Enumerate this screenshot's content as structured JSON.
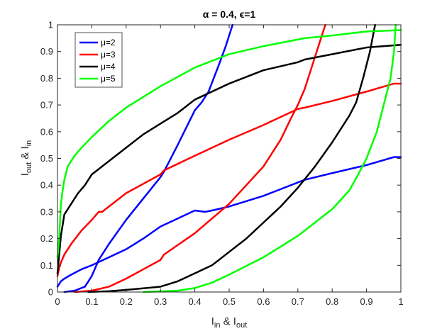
{
  "chart_data": {
    "type": "line",
    "title": "α = 0.4, ϵ=1",
    "xlabel": {
      "main1": "I",
      "sub1": "in",
      "mid": " & I",
      "sub2": "out"
    },
    "ylabel": {
      "main1": "I",
      "sub1": "out",
      "mid": " & I",
      "sub2": "in"
    },
    "xlim": [
      0,
      1
    ],
    "ylim": [
      0,
      1
    ],
    "xticks": [
      0,
      0.1,
      0.2,
      0.3,
      0.4,
      0.5,
      0.6,
      0.7,
      0.8,
      0.9,
      1
    ],
    "xtick_labels": [
      "0",
      "0.1",
      "0.2",
      "0.3",
      "0.4",
      "0.5",
      "0.6",
      "0.7",
      "0.8",
      "0.9",
      "1"
    ],
    "yticks": [
      0,
      0.1,
      0.2,
      0.3,
      0.4,
      0.5,
      0.6,
      0.7,
      0.8,
      0.9,
      1
    ],
    "ytick_labels": [
      "0",
      "0.1",
      "0.2",
      "0.3",
      "0.4",
      "0.5",
      "0.6",
      "0.7",
      "0.8",
      "0.9",
      "1"
    ],
    "grid": false,
    "legend_position": "top-left",
    "series": [
      {
        "name": "μ=2",
        "color": "#0000ff",
        "curves": [
          [
            [
              0.0,
              0.02
            ],
            [
              0.005,
              0.03
            ],
            [
              0.01,
              0.04
            ],
            [
              0.02,
              0.05
            ],
            [
              0.04,
              0.065
            ],
            [
              0.07,
              0.085
            ],
            [
              0.1,
              0.1
            ],
            [
              0.15,
              0.13
            ],
            [
              0.2,
              0.16
            ],
            [
              0.25,
              0.2
            ],
            [
              0.3,
              0.245
            ],
            [
              0.35,
              0.275
            ],
            [
              0.4,
              0.305
            ],
            [
              0.43,
              0.3
            ],
            [
              0.45,
              0.305
            ],
            [
              0.5,
              0.32
            ],
            [
              0.6,
              0.36
            ],
            [
              0.7,
              0.41
            ],
            [
              0.72,
              0.42
            ],
            [
              0.8,
              0.445
            ],
            [
              0.9,
              0.475
            ],
            [
              0.98,
              0.505
            ],
            [
              1.0,
              0.505
            ]
          ],
          [
            [
              0.02,
              0.0
            ],
            [
              0.05,
              0.005
            ],
            [
              0.08,
              0.02
            ],
            [
              0.1,
              0.06
            ],
            [
              0.12,
              0.12
            ],
            [
              0.15,
              0.18
            ],
            [
              0.2,
              0.27
            ],
            [
              0.25,
              0.35
            ],
            [
              0.3,
              0.43
            ],
            [
              0.31,
              0.45
            ],
            [
              0.35,
              0.55
            ],
            [
              0.4,
              0.68
            ],
            [
              0.42,
              0.71
            ],
            [
              0.44,
              0.75
            ],
            [
              0.47,
              0.85
            ],
            [
              0.49,
              0.92
            ],
            [
              0.51,
              1.0
            ]
          ]
        ]
      },
      {
        "name": "μ=3",
        "color": "#ff0000",
        "curves": [
          [
            [
              0.0,
              0.06
            ],
            [
              0.005,
              0.09
            ],
            [
              0.01,
              0.11
            ],
            [
              0.02,
              0.14
            ],
            [
              0.04,
              0.18
            ],
            [
              0.07,
              0.23
            ],
            [
              0.1,
              0.27
            ],
            [
              0.12,
              0.3
            ],
            [
              0.13,
              0.3
            ],
            [
              0.15,
              0.32
            ],
            [
              0.2,
              0.37
            ],
            [
              0.25,
              0.405
            ],
            [
              0.3,
              0.44
            ],
            [
              0.31,
              0.455
            ],
            [
              0.4,
              0.51
            ],
            [
              0.5,
              0.57
            ],
            [
              0.6,
              0.625
            ],
            [
              0.7,
              0.685
            ],
            [
              0.72,
              0.69
            ],
            [
              0.8,
              0.715
            ],
            [
              0.9,
              0.75
            ],
            [
              0.98,
              0.78
            ],
            [
              1.0,
              0.78
            ]
          ],
          [
            [
              0.05,
              0.0
            ],
            [
              0.1,
              0.005
            ],
            [
              0.15,
              0.02
            ],
            [
              0.2,
              0.05
            ],
            [
              0.25,
              0.085
            ],
            [
              0.3,
              0.12
            ],
            [
              0.31,
              0.14
            ],
            [
              0.4,
              0.22
            ],
            [
              0.5,
              0.33
            ],
            [
              0.6,
              0.47
            ],
            [
              0.65,
              0.57
            ],
            [
              0.68,
              0.65
            ],
            [
              0.7,
              0.7
            ],
            [
              0.72,
              0.76
            ],
            [
              0.75,
              0.88
            ],
            [
              0.78,
              1.0
            ]
          ]
        ]
      },
      {
        "name": "μ=4",
        "color": "#000000",
        "curves": [
          [
            [
              0.0,
              0.07
            ],
            [
              0.005,
              0.14
            ],
            [
              0.01,
              0.21
            ],
            [
              0.015,
              0.25
            ],
            [
              0.02,
              0.29
            ],
            [
              0.04,
              0.33
            ],
            [
              0.06,
              0.37
            ],
            [
              0.08,
              0.4
            ],
            [
              0.1,
              0.44
            ],
            [
              0.15,
              0.49
            ],
            [
              0.2,
              0.54
            ],
            [
              0.25,
              0.59
            ],
            [
              0.3,
              0.63
            ],
            [
              0.35,
              0.67
            ],
            [
              0.4,
              0.72
            ],
            [
              0.45,
              0.75
            ],
            [
              0.5,
              0.78
            ],
            [
              0.6,
              0.83
            ],
            [
              0.7,
              0.86
            ],
            [
              0.72,
              0.87
            ],
            [
              0.8,
              0.89
            ],
            [
              0.9,
              0.915
            ],
            [
              1.0,
              0.925
            ]
          ],
          [
            [
              0.09,
              0.0
            ],
            [
              0.15,
              0.003
            ],
            [
              0.2,
              0.008
            ],
            [
              0.3,
              0.02
            ],
            [
              0.35,
              0.04
            ],
            [
              0.4,
              0.07
            ],
            [
              0.45,
              0.1
            ],
            [
              0.5,
              0.15
            ],
            [
              0.55,
              0.2
            ],
            [
              0.6,
              0.26
            ],
            [
              0.65,
              0.32
            ],
            [
              0.7,
              0.39
            ],
            [
              0.75,
              0.47
            ],
            [
              0.8,
              0.56
            ],
            [
              0.85,
              0.66
            ],
            [
              0.87,
              0.71
            ],
            [
              0.89,
              0.8
            ],
            [
              0.91,
              0.9
            ],
            [
              0.925,
              1.0
            ]
          ]
        ]
      },
      {
        "name": "μ=5",
        "color": "#00ff00",
        "curves": [
          [
            [
              0.0,
              0.13
            ],
            [
              0.005,
              0.2
            ],
            [
              0.01,
              0.33
            ],
            [
              0.015,
              0.38
            ],
            [
              0.02,
              0.42
            ],
            [
              0.03,
              0.47
            ],
            [
              0.05,
              0.51
            ],
            [
              0.07,
              0.54
            ],
            [
              0.1,
              0.58
            ],
            [
              0.15,
              0.64
            ],
            [
              0.2,
              0.69
            ],
            [
              0.3,
              0.77
            ],
            [
              0.4,
              0.84
            ],
            [
              0.5,
              0.89
            ],
            [
              0.6,
              0.92
            ],
            [
              0.7,
              0.945
            ],
            [
              0.72,
              0.95
            ],
            [
              0.8,
              0.96
            ],
            [
              0.9,
              0.975
            ],
            [
              1.0,
              0.98
            ]
          ],
          [
            [
              0.25,
              0.0
            ],
            [
              0.35,
              0.005
            ],
            [
              0.4,
              0.015
            ],
            [
              0.45,
              0.035
            ],
            [
              0.5,
              0.065
            ],
            [
              0.6,
              0.13
            ],
            [
              0.7,
              0.21
            ],
            [
              0.75,
              0.26
            ],
            [
              0.8,
              0.31
            ],
            [
              0.85,
              0.38
            ],
            [
              0.88,
              0.45
            ],
            [
              0.9,
              0.5
            ],
            [
              0.93,
              0.6
            ],
            [
              0.95,
              0.7
            ],
            [
              0.97,
              0.8
            ],
            [
              0.98,
              0.9
            ],
            [
              0.985,
              1.0
            ]
          ]
        ]
      }
    ]
  }
}
